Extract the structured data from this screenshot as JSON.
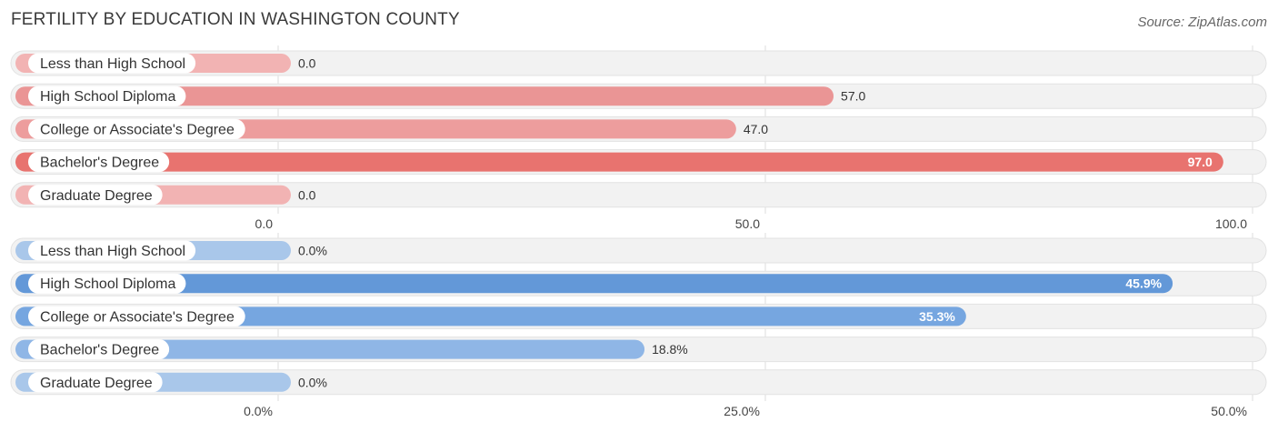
{
  "title": "FERTILITY BY EDUCATION IN WASHINGTON COUNTY",
  "source": "Source: ZipAtlas.com",
  "chart_data": [
    {
      "type": "bar",
      "orientation": "horizontal",
      "categories": [
        "Less than High School",
        "High School Diploma",
        "College or Associate's Degree",
        "Bachelor's Degree",
        "Graduate Degree"
      ],
      "values": [
        0.0,
        57.0,
        47.0,
        97.0,
        0.0
      ],
      "value_labels": [
        "0.0",
        "57.0",
        "47.0",
        "97.0",
        "0.0"
      ],
      "xlim": [
        0,
        100
      ],
      "ticks": [
        0,
        50,
        100
      ],
      "tick_labels": [
        "0.0",
        "50.0",
        "100.0"
      ],
      "colors": [
        "#f2b3b3",
        "#ea9595",
        "#ed9d9d",
        "#e8736f",
        "#f2b3b3"
      ]
    },
    {
      "type": "bar",
      "orientation": "horizontal",
      "categories": [
        "Less than High School",
        "High School Diploma",
        "College or Associate's Degree",
        "Bachelor's Degree",
        "Graduate Degree"
      ],
      "values": [
        0.0,
        45.9,
        35.3,
        18.8,
        0.0
      ],
      "value_labels": [
        "0.0%",
        "45.9%",
        "35.3%",
        "18.8%",
        "0.0%"
      ],
      "xlim": [
        0,
        50
      ],
      "ticks": [
        0,
        25,
        50
      ],
      "tick_labels": [
        "0.0%",
        "25.0%",
        "50.0%"
      ],
      "colors": [
        "#a9c7ea",
        "#6398d8",
        "#76a6e0",
        "#8fb6e6",
        "#a9c7ea"
      ]
    }
  ]
}
